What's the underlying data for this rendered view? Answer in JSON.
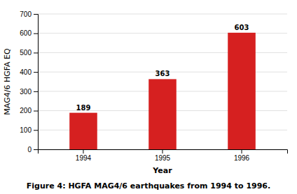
{
  "chart_data": {
    "type": "bar",
    "categories": [
      "1994",
      "1995",
      "1996"
    ],
    "values": [
      189,
      363,
      603
    ],
    "color": "#d62020",
    "xlabel": "Year",
    "ylabel": "MAG4/6 HGFA EQ",
    "caption": "Figure 4: HGFA MAG4/6 earthquakes from 1994 to 1996.",
    "ylim": [
      0,
      700
    ],
    "yticks": [
      0,
      100,
      200,
      300,
      400,
      500,
      600,
      700
    ],
    "grid": true,
    "data_labels": true
  }
}
